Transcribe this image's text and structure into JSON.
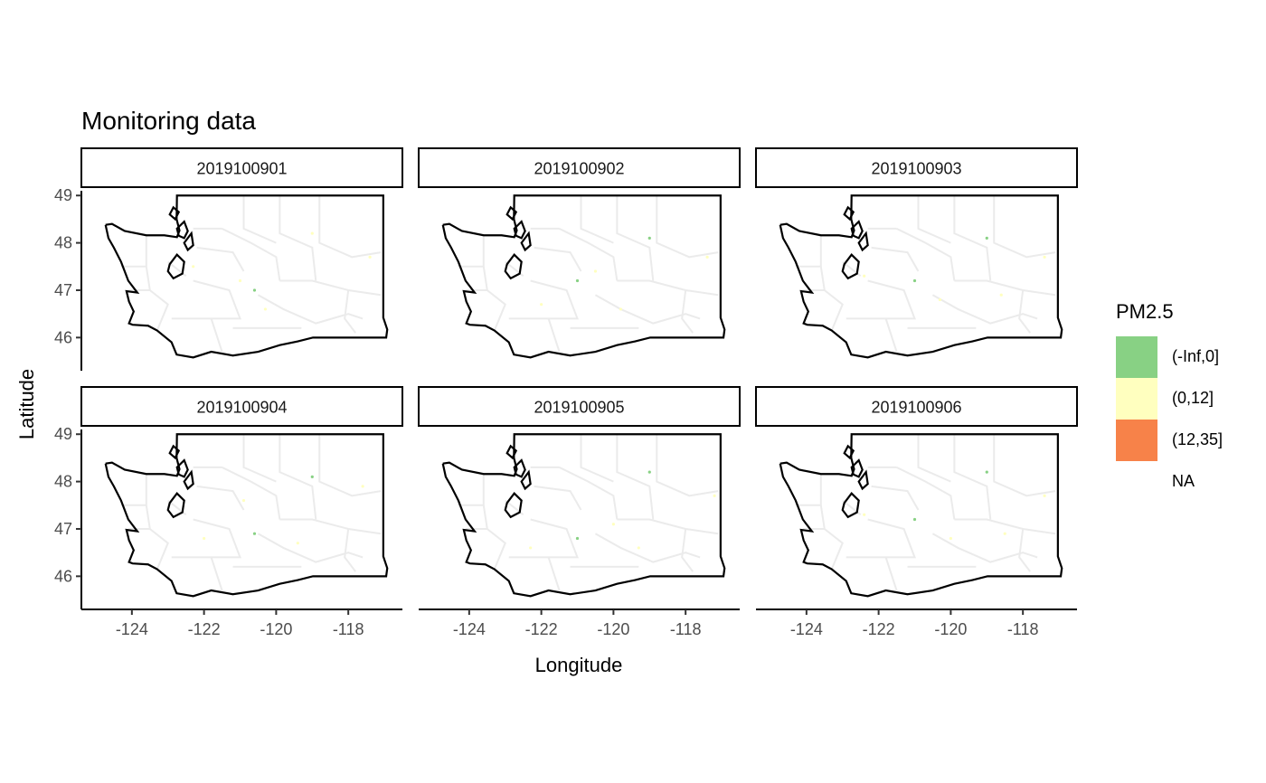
{
  "title": "Monitoring data",
  "x_axis": {
    "label": "Longitude",
    "ticks": [
      "-124",
      "-122",
      "-120",
      "-118"
    ],
    "tick_values": [
      -124,
      -122,
      -120,
      -118
    ],
    "range": [
      -125.4,
      -116.5
    ]
  },
  "y_axis": {
    "label": "Latitude",
    "ticks": [
      "46",
      "47",
      "48",
      "49"
    ],
    "tick_values": [
      46,
      47,
      48,
      49
    ],
    "range": [
      45.3,
      49.1
    ]
  },
  "panels": [
    {
      "label": "2019100901",
      "points": [
        {
          "lon": -120.6,
          "lat": 47.0,
          "bin": "(-Inf,0]"
        },
        {
          "lon": -121.0,
          "lat": 47.2,
          "bin": "(0,12]"
        },
        {
          "lon": -119.0,
          "lat": 48.2,
          "bin": "(0,12]"
        },
        {
          "lon": -117.4,
          "lat": 47.7,
          "bin": "(0,12]"
        },
        {
          "lon": -122.3,
          "lat": 47.5,
          "bin": "(0,12]"
        },
        {
          "lon": -120.3,
          "lat": 46.6,
          "bin": "(0,12]"
        }
      ]
    },
    {
      "label": "2019100902",
      "points": [
        {
          "lon": -121.0,
          "lat": 47.2,
          "bin": "(-Inf,0]"
        },
        {
          "lon": -119.0,
          "lat": 48.1,
          "bin": "(-Inf,0]"
        },
        {
          "lon": -122.0,
          "lat": 46.7,
          "bin": "(0,12]"
        },
        {
          "lon": -117.4,
          "lat": 47.7,
          "bin": "(0,12]"
        },
        {
          "lon": -119.8,
          "lat": 46.6,
          "bin": "(0,12]"
        },
        {
          "lon": -120.5,
          "lat": 47.4,
          "bin": "(0,12]"
        }
      ]
    },
    {
      "label": "2019100903",
      "points": [
        {
          "lon": -121.0,
          "lat": 47.2,
          "bin": "(-Inf,0]"
        },
        {
          "lon": -119.0,
          "lat": 48.1,
          "bin": "(-Inf,0]"
        },
        {
          "lon": -117.4,
          "lat": 47.7,
          "bin": "(0,12]"
        },
        {
          "lon": -122.4,
          "lat": 47.3,
          "bin": "(0,12]"
        },
        {
          "lon": -120.3,
          "lat": 46.8,
          "bin": "(0,12]"
        },
        {
          "lon": -118.6,
          "lat": 46.9,
          "bin": "(0,12]"
        }
      ]
    },
    {
      "label": "2019100904",
      "points": [
        {
          "lon": -120.6,
          "lat": 46.9,
          "bin": "(-Inf,0]"
        },
        {
          "lon": -119.0,
          "lat": 48.1,
          "bin": "(-Inf,0]"
        },
        {
          "lon": -117.6,
          "lat": 47.9,
          "bin": "(0,12]"
        },
        {
          "lon": -122.0,
          "lat": 46.8,
          "bin": "(0,12]"
        },
        {
          "lon": -120.9,
          "lat": 47.6,
          "bin": "(0,12]"
        },
        {
          "lon": -119.4,
          "lat": 46.7,
          "bin": "(0,12]"
        }
      ]
    },
    {
      "label": "2019100905",
      "points": [
        {
          "lon": -119.0,
          "lat": 48.2,
          "bin": "(-Inf,0]"
        },
        {
          "lon": -121.0,
          "lat": 46.8,
          "bin": "(-Inf,0]"
        },
        {
          "lon": -117.2,
          "lat": 47.7,
          "bin": "(0,12]"
        },
        {
          "lon": -122.3,
          "lat": 46.6,
          "bin": "(0,12]"
        },
        {
          "lon": -120.0,
          "lat": 47.1,
          "bin": "(0,12]"
        },
        {
          "lon": -119.3,
          "lat": 46.6,
          "bin": "(0,12]"
        }
      ]
    },
    {
      "label": "2019100906",
      "points": [
        {
          "lon": -121.0,
          "lat": 47.2,
          "bin": "(-Inf,0]"
        },
        {
          "lon": -119.0,
          "lat": 48.2,
          "bin": "(-Inf,0]"
        },
        {
          "lon": -117.4,
          "lat": 47.7,
          "bin": "(0,12]"
        },
        {
          "lon": -122.4,
          "lat": 47.3,
          "bin": "(0,12]"
        },
        {
          "lon": -120.0,
          "lat": 46.8,
          "bin": "(0,12]"
        },
        {
          "lon": -118.5,
          "lat": 46.9,
          "bin": "(0,12]"
        }
      ]
    }
  ],
  "legend": {
    "title": "PM2.5",
    "items": [
      {
        "label": "(-Inf,0]",
        "color": "#88D184"
      },
      {
        "label": "(0,12]",
        "color": "#FFFFBF"
      },
      {
        "label": "(12,35]",
        "color": "#F78249"
      },
      {
        "label": "NA",
        "color": "#FFFFFF"
      }
    ]
  },
  "colors": {
    "state_border": "#000000",
    "county_border": "#EBEBEB",
    "strip_fill": "#FFFFFF",
    "axis_text": "#4D4D4D"
  }
}
